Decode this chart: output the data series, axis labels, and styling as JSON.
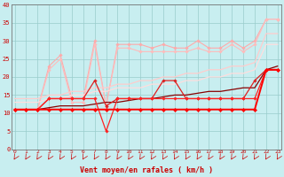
{
  "xlabel": "Vent moyen/en rafales ( km/h )",
  "background_color": "#c8eef0",
  "grid_color": "#99cccc",
  "x_ticks": [
    0,
    1,
    2,
    3,
    4,
    5,
    6,
    7,
    8,
    9,
    10,
    11,
    12,
    13,
    14,
    15,
    16,
    17,
    18,
    19,
    20,
    21,
    22,
    23
  ],
  "y_ticks": [
    0,
    5,
    10,
    15,
    20,
    25,
    30,
    35,
    40
  ],
  "ylim": [
    0,
    40
  ],
  "xlim": [
    -0.3,
    23.3
  ],
  "lines": [
    {
      "color": "#ffaaaa",
      "linewidth": 0.8,
      "marker": "D",
      "markersize": 1.8,
      "x": [
        0,
        1,
        2,
        3,
        4,
        5,
        6,
        7,
        8,
        9,
        10,
        11,
        12,
        13,
        14,
        15,
        16,
        17,
        18,
        19,
        20,
        21,
        22,
        23
      ],
      "y": [
        11,
        11,
        11,
        23,
        26,
        14,
        14,
        30,
        12,
        29,
        29,
        29,
        28,
        29,
        28,
        28,
        30,
        28,
        28,
        30,
        28,
        30,
        36,
        36
      ]
    },
    {
      "color": "#ffbbbb",
      "linewidth": 0.8,
      "marker": "D",
      "markersize": 1.8,
      "x": [
        0,
        1,
        2,
        3,
        4,
        5,
        6,
        7,
        8,
        9,
        10,
        11,
        12,
        13,
        14,
        15,
        16,
        17,
        18,
        19,
        20,
        21,
        22,
        23
      ],
      "y": [
        11,
        11,
        11,
        22,
        25,
        13,
        13,
        29,
        12,
        28,
        28,
        27,
        27,
        27,
        27,
        27,
        28,
        27,
        27,
        29,
        27,
        29,
        36,
        36
      ]
    },
    {
      "color": "#ffcccc",
      "linewidth": 0.9,
      "marker": null,
      "x": [
        0,
        1,
        2,
        3,
        4,
        5,
        6,
        7,
        8,
        9,
        10,
        11,
        12,
        13,
        14,
        15,
        16,
        17,
        18,
        19,
        20,
        21,
        22,
        23
      ],
      "y": [
        14,
        14,
        14,
        15,
        15,
        16,
        16,
        17,
        17,
        18,
        18,
        19,
        19,
        20,
        20,
        21,
        21,
        22,
        22,
        23,
        23,
        24,
        32,
        32
      ]
    },
    {
      "color": "#ffdddd",
      "linewidth": 0.9,
      "marker": null,
      "x": [
        0,
        1,
        2,
        3,
        4,
        5,
        6,
        7,
        8,
        9,
        10,
        11,
        12,
        13,
        14,
        15,
        16,
        17,
        18,
        19,
        20,
        21,
        22,
        23
      ],
      "y": [
        13,
        13,
        13,
        14,
        14,
        15,
        15,
        16,
        16,
        17,
        17,
        17,
        18,
        18,
        18,
        19,
        19,
        20,
        20,
        21,
        21,
        22,
        29,
        29
      ]
    },
    {
      "color": "#880000",
      "linewidth": 0.9,
      "marker": null,
      "x": [
        0,
        1,
        2,
        3,
        4,
        5,
        6,
        7,
        8,
        9,
        10,
        11,
        12,
        13,
        14,
        15,
        16,
        17,
        18,
        19,
        20,
        21,
        22,
        23
      ],
      "y": [
        11,
        11,
        11,
        11.5,
        12,
        12,
        12,
        12.5,
        13,
        13,
        13.5,
        14,
        14,
        14.5,
        15,
        15,
        15.5,
        16,
        16,
        16.5,
        17,
        17,
        22,
        23
      ]
    },
    {
      "color": "#dd2222",
      "linewidth": 0.9,
      "marker": "D",
      "markersize": 1.8,
      "x": [
        0,
        1,
        2,
        3,
        4,
        5,
        6,
        7,
        8,
        9,
        10,
        11,
        12,
        13,
        14,
        15,
        16,
        17,
        18,
        19,
        20,
        21,
        22,
        23
      ],
      "y": [
        11,
        11,
        11,
        14,
        14,
        14,
        14,
        19,
        12,
        14,
        14,
        14,
        14,
        19,
        19,
        14,
        14,
        14,
        14,
        14,
        14,
        19,
        22,
        22
      ]
    },
    {
      "color": "#ff2222",
      "linewidth": 0.9,
      "marker": "D",
      "markersize": 1.8,
      "x": [
        0,
        1,
        2,
        3,
        4,
        5,
        6,
        7,
        8,
        9,
        10,
        11,
        12,
        13,
        14,
        15,
        16,
        17,
        18,
        19,
        20,
        21,
        22,
        23
      ],
      "y": [
        11,
        11,
        11,
        14,
        14,
        14,
        14,
        14,
        5,
        14,
        14,
        14,
        14,
        14,
        14,
        14,
        14,
        14,
        14,
        14,
        14,
        14,
        22,
        22
      ]
    },
    {
      "color": "#ff0000",
      "linewidth": 1.4,
      "marker": "D",
      "markersize": 2.2,
      "x": [
        0,
        1,
        2,
        3,
        4,
        5,
        6,
        7,
        8,
        9,
        10,
        11,
        12,
        13,
        14,
        15,
        16,
        17,
        18,
        19,
        20,
        21,
        22,
        23
      ],
      "y": [
        11,
        11,
        11,
        11,
        11,
        11,
        11,
        11,
        11,
        11,
        11,
        11,
        11,
        11,
        11,
        11,
        11,
        11,
        11,
        11,
        11,
        11,
        22,
        22
      ]
    }
  ],
  "arrow_color": "#cc0000",
  "tick_color": "#cc0000",
  "label_color": "#cc0000"
}
